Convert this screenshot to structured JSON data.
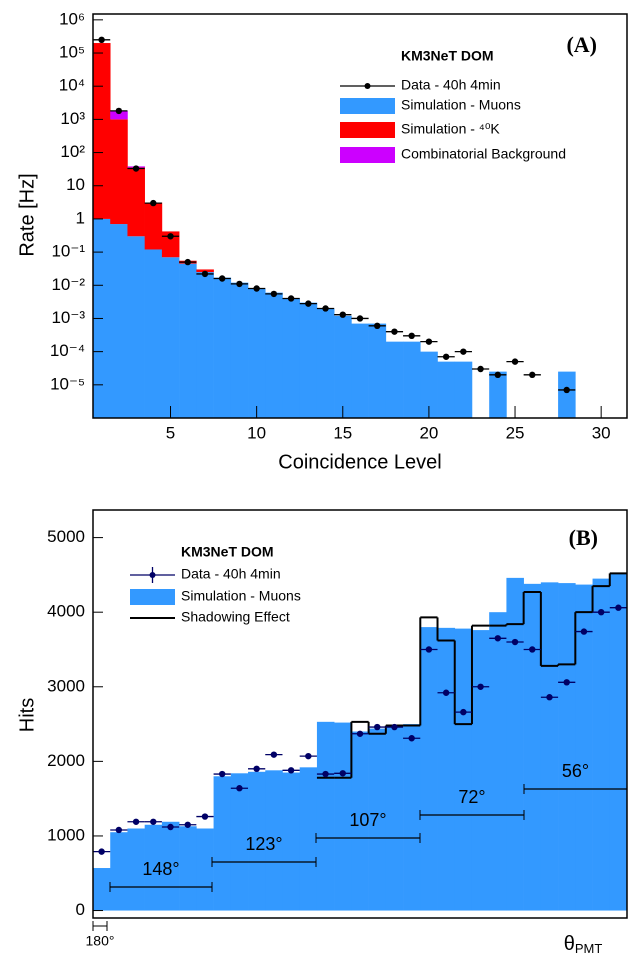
{
  "chart_data": [
    {
      "type": "histogram",
      "label": "(A)",
      "legend_title": "KM3NeT DOM",
      "x_label": "Coincidence Level",
      "y_label": "Rate [Hz]",
      "yscale": "log",
      "x": [
        1,
        2,
        3,
        4,
        5,
        6,
        7,
        8,
        9,
        10,
        11,
        12,
        13,
        14,
        15,
        16,
        17,
        18,
        19,
        20,
        21,
        22,
        23,
        24,
        25,
        26,
        27,
        28,
        29,
        30
      ],
      "xlim": [
        0.5,
        31.5
      ],
      "xticks": [
        5,
        10,
        15,
        20,
        25,
        30
      ],
      "ylim": [
        1e-06,
        1500000
      ],
      "yticks": [
        {
          "value": 1e-05,
          "label": "10⁻⁵"
        },
        {
          "value": 0.0001,
          "label": "10⁻⁴"
        },
        {
          "value": 0.001,
          "label": "10⁻³"
        },
        {
          "value": 0.01,
          "label": "10⁻²"
        },
        {
          "value": 0.1,
          "label": "10⁻¹"
        },
        1,
        10,
        {
          "value": 100,
          "label": "10²"
        },
        {
          "value": 1000,
          "label": "10³"
        },
        {
          "value": 10000,
          "label": "10⁴"
        },
        {
          "value": 100000,
          "label": "10⁵"
        },
        {
          "value": 1000000,
          "label": "10⁶"
        }
      ],
      "series": [
        {
          "name": "Data - 40h 4min",
          "color": "#000000",
          "style": "points",
          "values": [
            250000,
            1800,
            33,
            3,
            0.3,
            0.05,
            0.022,
            0.016,
            0.011,
            0.008,
            0.0055,
            0.004,
            0.0028,
            0.002,
            0.0013,
            0.001,
            0.0006,
            0.0004,
            0.0003,
            0.0002,
            7e-05,
            0.0001,
            3e-05,
            2e-05,
            5e-05,
            2e-05,
            null,
            7e-06,
            null,
            null
          ]
        },
        {
          "name": "Simulation - Muons",
          "color": "#3399ff",
          "style": "stacked",
          "values": [
            1.0,
            0.7,
            0.3,
            0.12,
            0.07,
            0.045,
            0.025,
            0.017,
            0.012,
            0.008,
            0.006,
            0.004,
            0.003,
            0.002,
            0.0012,
            0.0007,
            0.0007,
            0.0002,
            0.0002,
            0.0001,
            5e-05,
            5e-05,
            null,
            2.5e-05,
            null,
            null,
            null,
            2.5e-05,
            null,
            null
          ]
        },
        {
          "name": "Simulation - ⁴⁰K",
          "color": "#ff0000",
          "style": "stacked",
          "values": [
            200000,
            1000,
            35,
            3,
            0.35,
            0.01,
            0.005,
            null,
            null,
            null,
            null,
            null,
            null,
            null,
            null,
            null,
            null,
            null,
            null,
            null,
            null,
            null,
            null,
            null,
            null,
            null,
            null,
            null,
            null,
            null
          ]
        },
        {
          "name": "Combinatorial Background",
          "color": "#cc00ff",
          "style": "stacked",
          "values": [
            null,
            800,
            3,
            null,
            null,
            null,
            null,
            null,
            null,
            null,
            null,
            null,
            null,
            null,
            null,
            null,
            null,
            null,
            null,
            null,
            null,
            null,
            null,
            null,
            null,
            null,
            null,
            null,
            null,
            null
          ]
        }
      ]
    },
    {
      "type": "histogram",
      "label": "(B)",
      "legend_title": "KM3NeT DOM",
      "y_label": "Hits",
      "x_label": "θ",
      "x_label_subscript": "PMT",
      "x_start_label": "180°",
      "categories": [
        null,
        null,
        null,
        null,
        null,
        null,
        null,
        null,
        null,
        null,
        null,
        null,
        null,
        null,
        null,
        null,
        null,
        null,
        null,
        null,
        null,
        null,
        null,
        null,
        null,
        null,
        null,
        null,
        null,
        null,
        null
      ],
      "ylim": [
        -100,
        5370
      ],
      "yticks": [
        0,
        1000,
        2000,
        3000,
        4000,
        5000
      ],
      "annotations": [
        "148°",
        "123°",
        "107°",
        "72°",
        "56°"
      ],
      "series": [
        {
          "name": "Data - 40h 4min",
          "color": "#000066",
          "style": "points",
          "values": [
            790,
            1080,
            1190,
            1190,
            1120,
            1150,
            1260,
            1830,
            1640,
            1900,
            2090,
            1880,
            2070,
            1830,
            1840,
            2370,
            2460,
            2460,
            2310,
            3500,
            2920,
            2660,
            3000,
            3650,
            3600,
            3500,
            2860,
            3060,
            3740,
            4000,
            4060
          ]
        },
        {
          "name": "Simulation - Muons",
          "color": "#3399ff",
          "style": "stacked",
          "values": [
            570,
            1050,
            1100,
            1150,
            1190,
            1130,
            1100,
            1800,
            1840,
            1860,
            1880,
            1850,
            1920,
            2530,
            2520,
            2400,
            2440,
            2480,
            2500,
            3800,
            3790,
            3780,
            3760,
            4000,
            4460,
            4380,
            4400,
            4390,
            4370,
            4450,
            4520
          ]
        },
        {
          "name": "Shadowing Effect",
          "color": "#000000",
          "style": "step",
          "values": [
            null,
            null,
            null,
            null,
            null,
            null,
            null,
            null,
            null,
            null,
            null,
            null,
            null,
            1780,
            1780,
            2530,
            2370,
            2480,
            2480,
            3930,
            3620,
            2500,
            3820,
            3820,
            3840,
            4270,
            3280,
            3300,
            4000,
            4350,
            4520
          ]
        }
      ]
    }
  ]
}
